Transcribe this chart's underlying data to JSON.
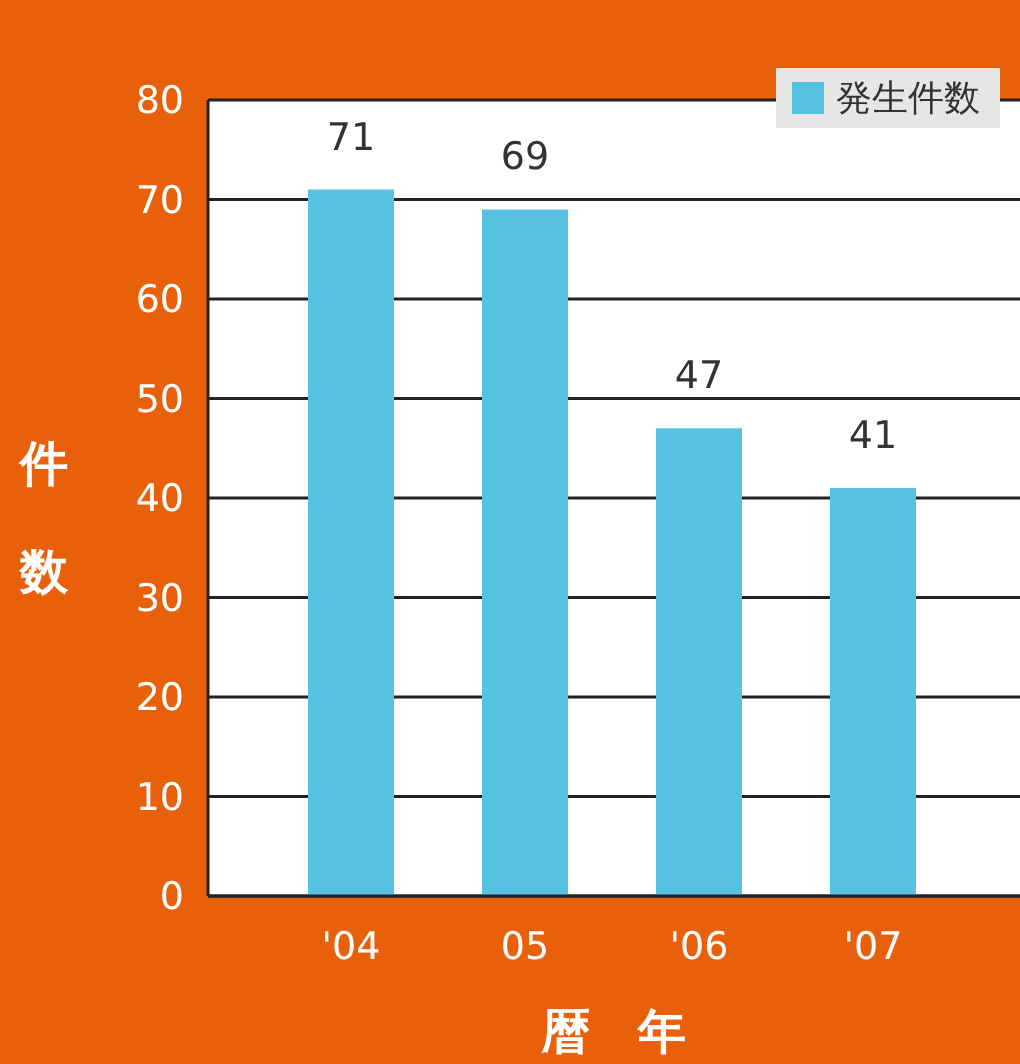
{
  "chart_data": {
    "type": "bar",
    "xlabel": "暦　年",
    "ylabel": "件数",
    "categories": [
      "'04",
      "05",
      "'06",
      "'07"
    ],
    "series": [
      {
        "name": "発生件数",
        "color": "#56c1e0",
        "values": [
          71,
          69,
          47,
          41
        ]
      }
    ],
    "ylim": [
      0,
      80
    ],
    "yticks": [
      0,
      10,
      20,
      30,
      40,
      50,
      60,
      70,
      80
    ],
    "grid": "y",
    "legend": "top right",
    "data_labels": true
  }
}
